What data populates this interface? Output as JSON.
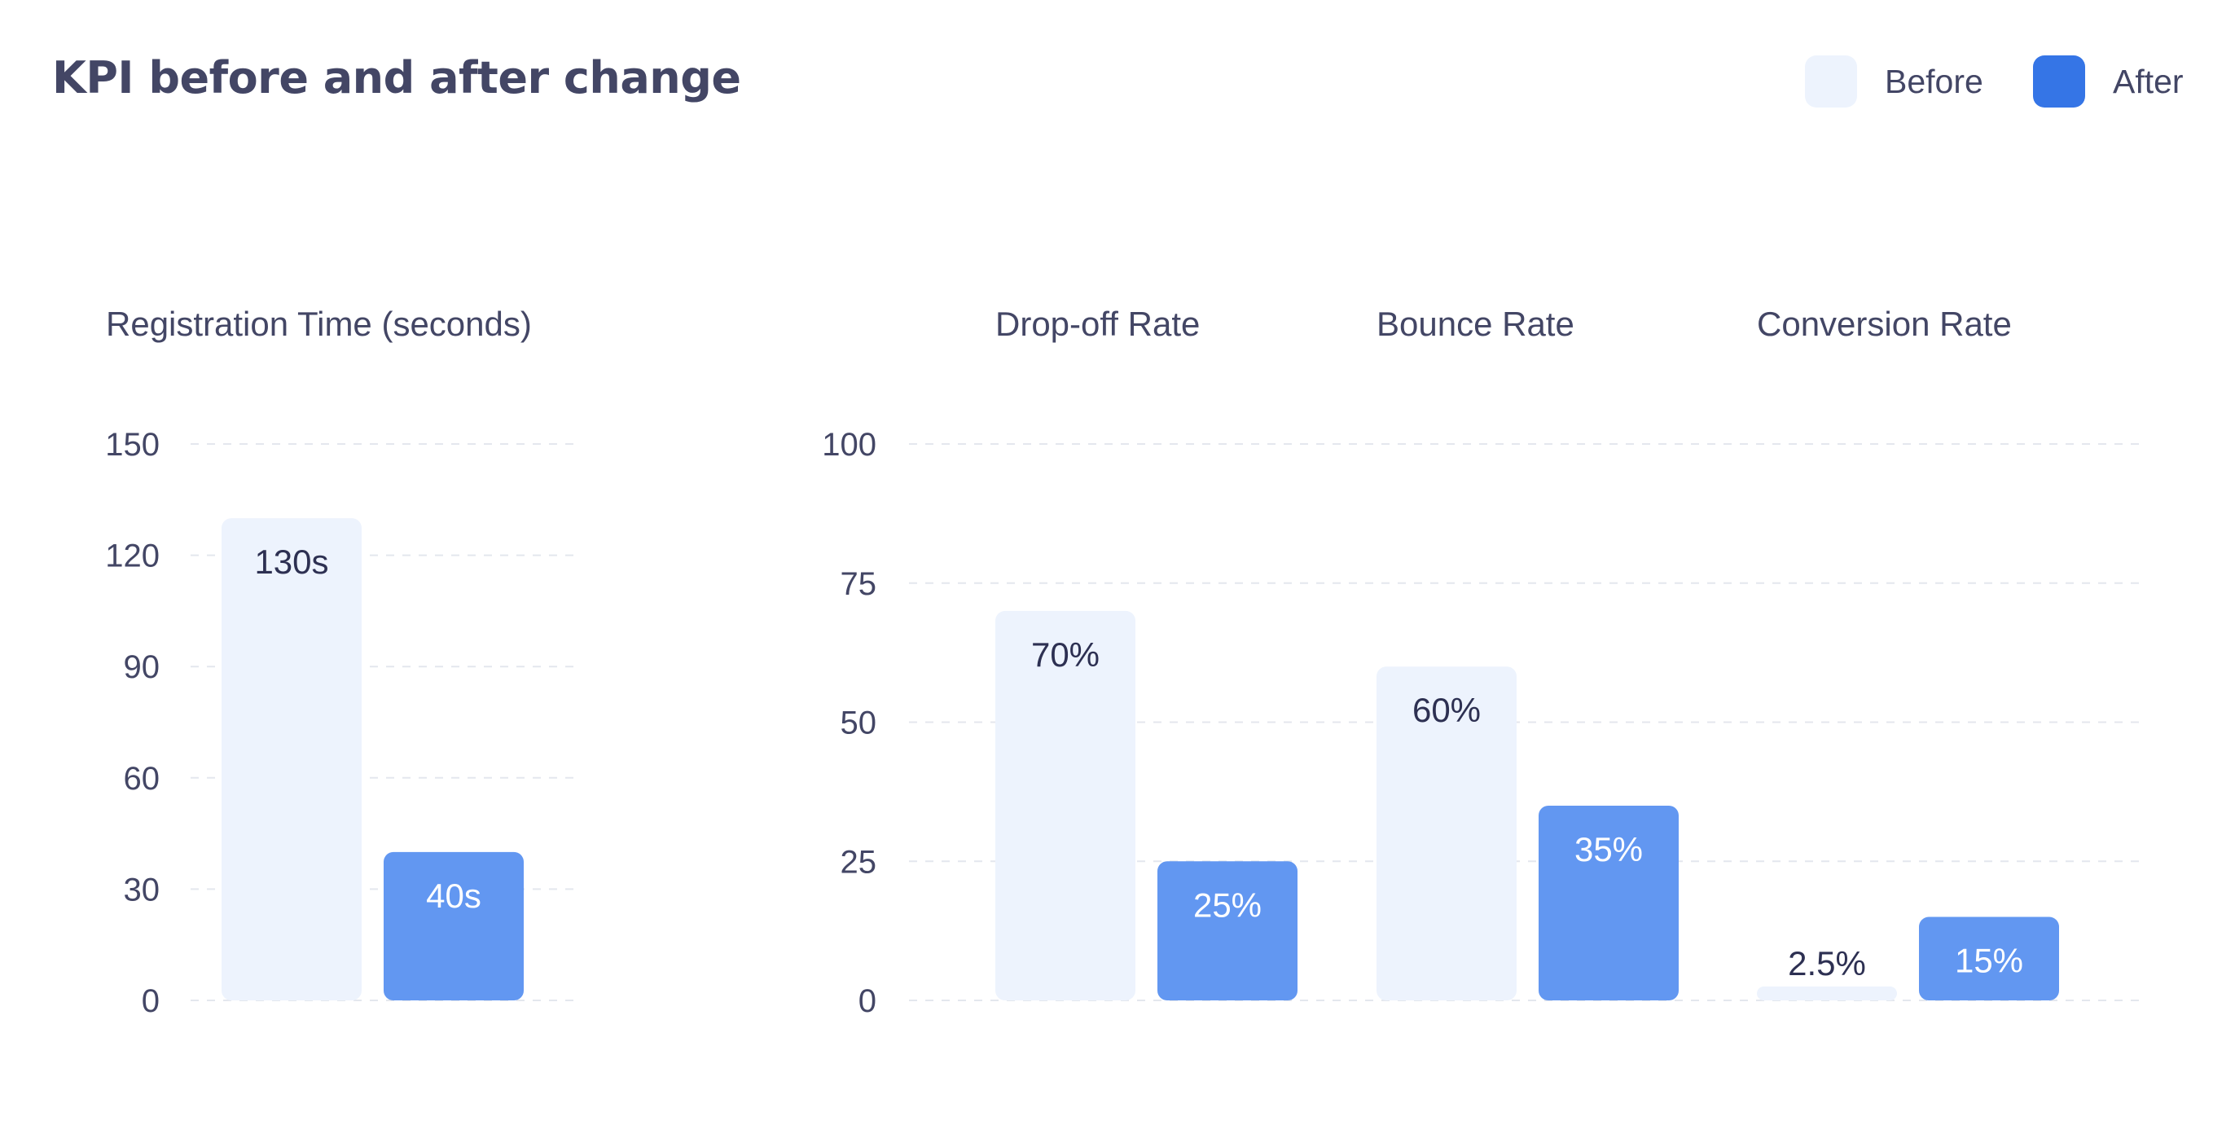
{
  "chart_data": {
    "type": "bar",
    "title": "KPI before and after change",
    "legend": {
      "placement": "top-right",
      "items": [
        {
          "label": "Before",
          "color": "#EDF3FD"
        },
        {
          "label": "After",
          "color": "#3575E6"
        }
      ]
    },
    "colors": {
      "before_bar": "#EDF3FD",
      "after_bar": "#6297F1",
      "before_label": "#2D3052",
      "after_label": "#FFFFFF",
      "axis_text": "#434665",
      "grid": "#E4E7EE"
    },
    "grid": true,
    "panels": [
      {
        "ylim": [
          0,
          150
        ],
        "yticks": [
          "0",
          "30",
          "60",
          "90",
          "120",
          "150"
        ],
        "groups": [
          {
            "label": "Registration Time (seconds)",
            "before": 130,
            "after": 40,
            "before_label": "130s",
            "after_label": "40s"
          }
        ]
      },
      {
        "ylim": [
          0,
          100
        ],
        "yticks": [
          "0",
          "25",
          "50",
          "75",
          "100"
        ],
        "groups": [
          {
            "label": "Drop-off Rate",
            "before": 70,
            "after": 25,
            "before_label": "70%",
            "after_label": "25%"
          },
          {
            "label": "Bounce Rate",
            "before": 60,
            "after": 35,
            "before_label": "60%",
            "after_label": "35%"
          },
          {
            "label": "Conversion Rate",
            "before": 2.5,
            "after": 15,
            "before_label": "2.5%",
            "after_label": "15%"
          }
        ]
      }
    ]
  }
}
